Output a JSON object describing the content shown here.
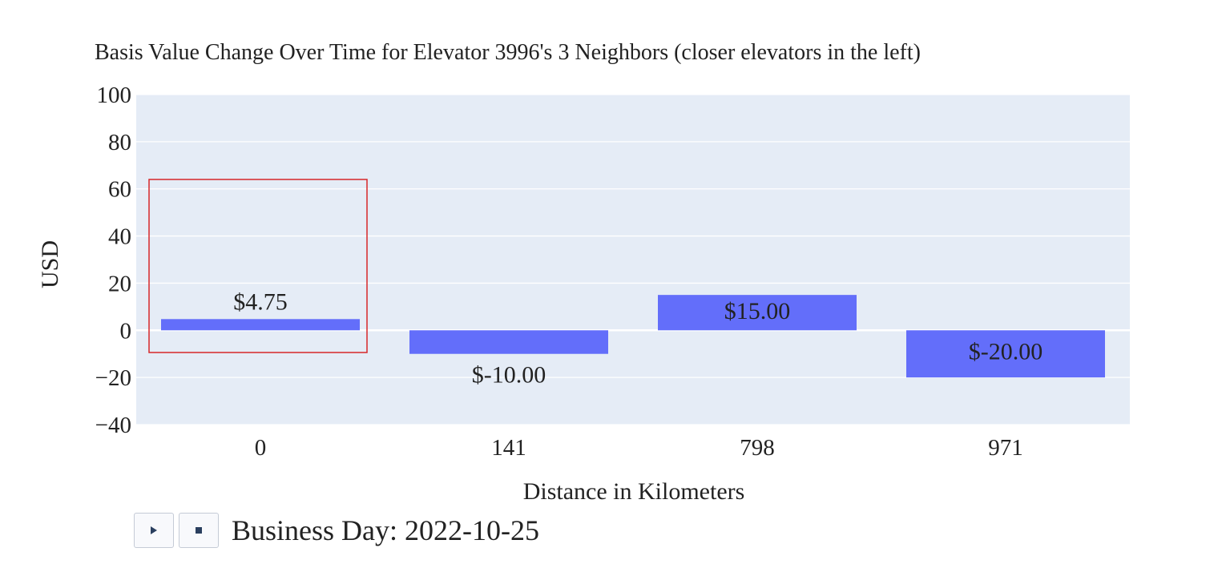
{
  "chart_data": {
    "type": "bar",
    "title": "Basis Value Change Over Time for Elevator 3996's 3 Neighbors (closer elevators in the left)",
    "xlabel": "Distance in Kilometers",
    "ylabel": "USD",
    "categories": [
      "0",
      "141",
      "798",
      "971"
    ],
    "values": [
      4.75,
      -10.0,
      15.0,
      -20.0
    ],
    "data_labels": [
      "$4.75",
      "$-10.00",
      "$15.00",
      "$-20.00"
    ],
    "ylim": [
      -40,
      100
    ],
    "yticks": [
      100,
      80,
      60,
      40,
      20,
      0,
      -20,
      -40
    ],
    "ytick_labels": [
      "100",
      "80",
      "60",
      "40",
      "20",
      "0",
      "−20",
      "−40"
    ],
    "grid": true,
    "colors": {
      "bar": "#636efa",
      "plot_bg": "#e5ecf6",
      "grid": "#ffffff",
      "highlight": "#d62728"
    },
    "highlight_category": "0"
  },
  "controls": {
    "play_icon": "play-icon",
    "stop_icon": "stop-icon",
    "slider_label": "Business Day: 2022-10-25"
  }
}
